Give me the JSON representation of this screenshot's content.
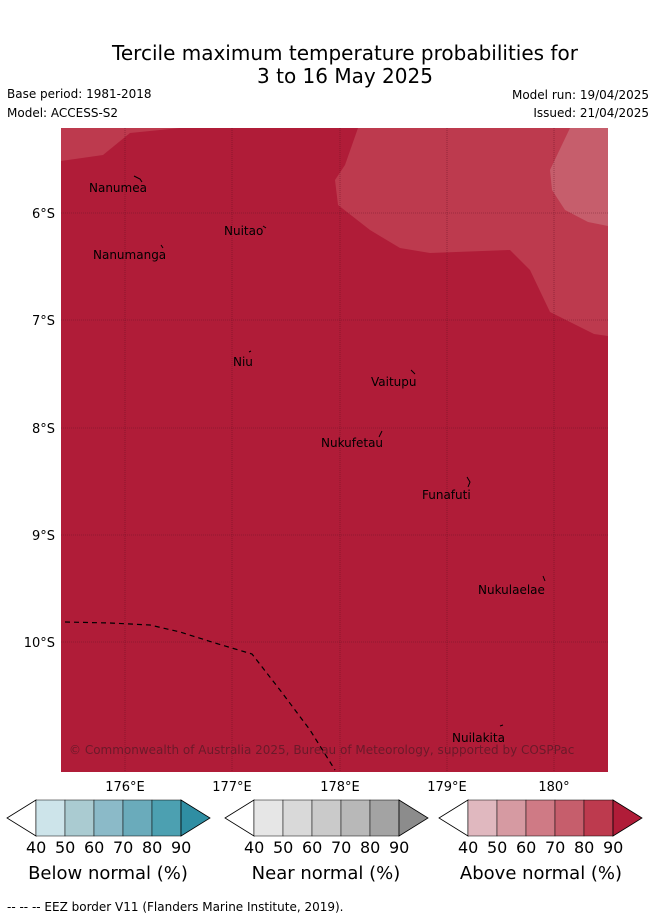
{
  "title_line1": "Tercile maximum temperature probabilities for",
  "title_line2": "3 to 16 May 2025",
  "base_period": "Base period: 1981-2018",
  "model": "Model: ACCESS-S2",
  "model_run": "Model run: 19/04/2025",
  "issued": "Issued: 21/04/2025",
  "lat_labels": [
    "6°S",
    "7°S",
    "8°S",
    "9°S",
    "10°S"
  ],
  "lon_labels": [
    "176°E",
    "177°E",
    "178°E",
    "179°E",
    "180°"
  ],
  "places": {
    "nanumea": "Nanumea",
    "nuitao": "Nuitao",
    "nanumanga": "Nanumanga",
    "niu": "Niu",
    "vaitupu": "Vaitupu",
    "nukufetau": "Nukufetau",
    "funafuti": "Funafuti",
    "nukulaelae": "Nukulaelae",
    "nuilakita": "Nuilakita"
  },
  "copyright": "© Commonwealth of Australia 2025, Bureau of Meteorology, supported by COSPPac",
  "legends": {
    "below": {
      "label": "Below normal (%)",
      "colors": [
        "#cde4ea",
        "#aacbd1",
        "#8bbac8",
        "#6aabbb",
        "#4ca0b1",
        "#2f8ea3"
      ]
    },
    "near": {
      "label": "Near normal (%)",
      "colors": [
        "#e6e6e6",
        "#d9d9d9",
        "#cacaca",
        "#b8b8b8",
        "#a3a3a3",
        "#8c8c8c"
      ]
    },
    "above": {
      "label": "Above normal (%)",
      "colors": [
        "#e0b8bf",
        "#d69aa2",
        "#cf7a85",
        "#c65e6c",
        "#bd3a4e",
        "#b01c38"
      ]
    }
  },
  "legend_ticks": [
    "40",
    "50",
    "60",
    "70",
    "80",
    "90"
  ],
  "footer": "-- -- -- EEZ border V11 (Flanders Marine Institute, 2019)."
}
